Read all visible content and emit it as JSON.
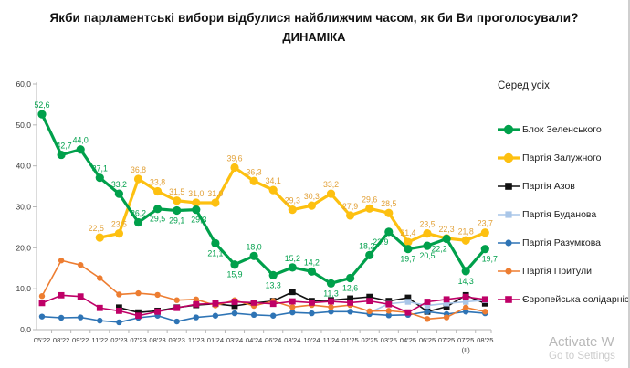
{
  "title": {
    "line1": "Якби парламентські вибори відбулися найближчим часом, як би Ви проголосували?",
    "line2": "ДИНАМІКА"
  },
  "legend": {
    "header": "Серед усіх"
  },
  "watermark": {
    "line1": "Activate W",
    "line2": "Go to Settings"
  },
  "chart_data": {
    "type": "line",
    "title": "Якби парламентські вибори відбулися найближчим часом, як би Ви проголосували? ДИНАМІКА",
    "categories": [
      "05'22",
      "08'22",
      "09'22",
      "11'22",
      "02'23",
      "07'23",
      "08'23",
      "09'23",
      "11'23",
      "01'24",
      "03'24",
      "04'24",
      "06'24",
      "08'24",
      "10'24",
      "11'24",
      "01'25",
      "02'25",
      "03'25",
      "04'25",
      "06'25",
      "07'25",
      "07'25",
      "08'25"
    ],
    "x_sublabel": {
      "index": 22,
      "text": "(II)"
    },
    "ylim": [
      0,
      60
    ],
    "ytick_step": 10,
    "grid": false,
    "legend_position": "right",
    "decimal_separator": ",",
    "series": [
      {
        "name": "Партія Азов",
        "color": "#111111",
        "label_color": "#111111",
        "marker": "square",
        "line_width": 1.6,
        "marker_size": 3.4,
        "labels": false,
        "values": [
          null,
          null,
          null,
          null,
          5.4,
          4.2,
          4.6,
          5.4,
          6.0,
          6.3,
          5.8,
          6.5,
          7.0,
          9.2,
          7.0,
          7.2,
          7.6,
          8.0,
          7.0,
          7.8,
          4.4,
          5.6,
          8.4,
          6.4
        ]
      },
      {
        "name": "Партія Буданова",
        "color": "#A9C6E8",
        "label_color": "#A9C6E8",
        "marker": "square",
        "line_width": 1.6,
        "marker_size": 3.2,
        "labels": false,
        "values": [
          null,
          null,
          null,
          null,
          null,
          null,
          null,
          null,
          null,
          null,
          null,
          null,
          null,
          null,
          null,
          null,
          null,
          4.2,
          6.3,
          6.8,
          5.9,
          6.4,
          6.8,
          7.2
        ]
      },
      {
        "name": "Партія Разумкова",
        "color": "#2E74B5",
        "label_color": "#2E74B5",
        "marker": "circle",
        "line_width": 1.6,
        "marker_size": 3.2,
        "labels": false,
        "values": [
          3.2,
          2.9,
          3.0,
          2.2,
          1.8,
          2.9,
          3.4,
          2.0,
          3.0,
          3.4,
          4.0,
          3.6,
          3.4,
          4.2,
          4.0,
          4.4,
          4.4,
          3.8,
          3.5,
          3.6,
          4.4,
          3.8,
          4.4,
          4.0
        ]
      },
      {
        "name": "Партія Притули",
        "color": "#ED7D31",
        "label_color": "#ED7D31",
        "marker": "circle",
        "line_width": 1.6,
        "marker_size": 3.2,
        "labels": false,
        "values": [
          8.2,
          16.9,
          15.8,
          12.6,
          8.6,
          8.9,
          8.5,
          7.2,
          7.4,
          5.9,
          7.2,
          5.8,
          7.0,
          5.5,
          6.0,
          5.5,
          6.0,
          4.5,
          4.6,
          4.2,
          2.6,
          3.0,
          5.4,
          4.4
        ]
      },
      {
        "name": "Європейська солідарність",
        "color": "#BF0067",
        "label_color": "#BF0067",
        "marker": "square",
        "line_width": 1.6,
        "marker_size": 3.4,
        "labels": false,
        "values": [
          6.5,
          8.4,
          8.1,
          5.3,
          4.6,
          3.4,
          4.4,
          5.3,
          6.2,
          6.4,
          6.8,
          6.6,
          6.3,
          6.9,
          6.6,
          6.9,
          6.6,
          7.0,
          6.2,
          4.2,
          6.8,
          7.4,
          8.0,
          7.4
        ]
      },
      {
        "name": "Партія Залужного",
        "color": "#FDC010",
        "label_color": "#E2A138",
        "marker": "circle",
        "line_width": 3.2,
        "marker_size": 4.6,
        "labels": true,
        "values": [
          null,
          null,
          null,
          22.5,
          23.5,
          36.8,
          33.8,
          31.5,
          31.0,
          31.0,
          39.6,
          36.3,
          34.1,
          29.3,
          30.3,
          33.2,
          27.9,
          29.6,
          28.5,
          21.4,
          23.5,
          22.3,
          21.8,
          23.7
        ],
        "label_pos": [
          "above",
          "above",
          "above",
          "above",
          "above",
          "above",
          "above",
          "above",
          "above",
          "above",
          "above",
          "above",
          "above",
          "above",
          "above",
          "above",
          "above",
          "above",
          "above",
          "above",
          "above",
          "above",
          "above",
          "above"
        ],
        "label_dx": [
          0,
          0,
          0,
          -4,
          0,
          0,
          0,
          0,
          0,
          0,
          0,
          0,
          0,
          0,
          0,
          0,
          0,
          0,
          0,
          0,
          0,
          0,
          0,
          0
        ]
      },
      {
        "name": "Блок Зеленського",
        "color": "#00A04B",
        "label_color": "#00A04B",
        "marker": "circle",
        "line_width": 3.2,
        "marker_size": 4.6,
        "labels": true,
        "values": [
          52.6,
          42.7,
          44.0,
          37.1,
          33.2,
          26.2,
          29.5,
          29.1,
          29.3,
          21.1,
          15.9,
          18.0,
          13.3,
          15.2,
          14.2,
          11.3,
          12.6,
          18.2,
          23.9,
          19.7,
          20.5,
          22.2,
          14.3,
          19.7
        ],
        "label_pos": [
          "above",
          "above",
          "above",
          "above",
          "above",
          "above",
          "below",
          "below",
          "below",
          "below",
          "below",
          "above",
          "below",
          "above",
          "above",
          "below",
          "below",
          "above",
          "below",
          "below",
          "below",
          "below",
          "below",
          "below"
        ],
        "label_dx": [
          0,
          3,
          0,
          0,
          0,
          0,
          0,
          0,
          3,
          0,
          0,
          0,
          0,
          0,
          0,
          0,
          0,
          -3,
          -9,
          0,
          0,
          -8,
          0,
          5
        ]
      }
    ],
    "legend_order": [
      "Блок Зеленського",
      "Партія Залужного",
      "Партія Азов",
      "Партія Буданова",
      "Партія Разумкова",
      "Партія Притули",
      "Європейська солідарність"
    ]
  }
}
